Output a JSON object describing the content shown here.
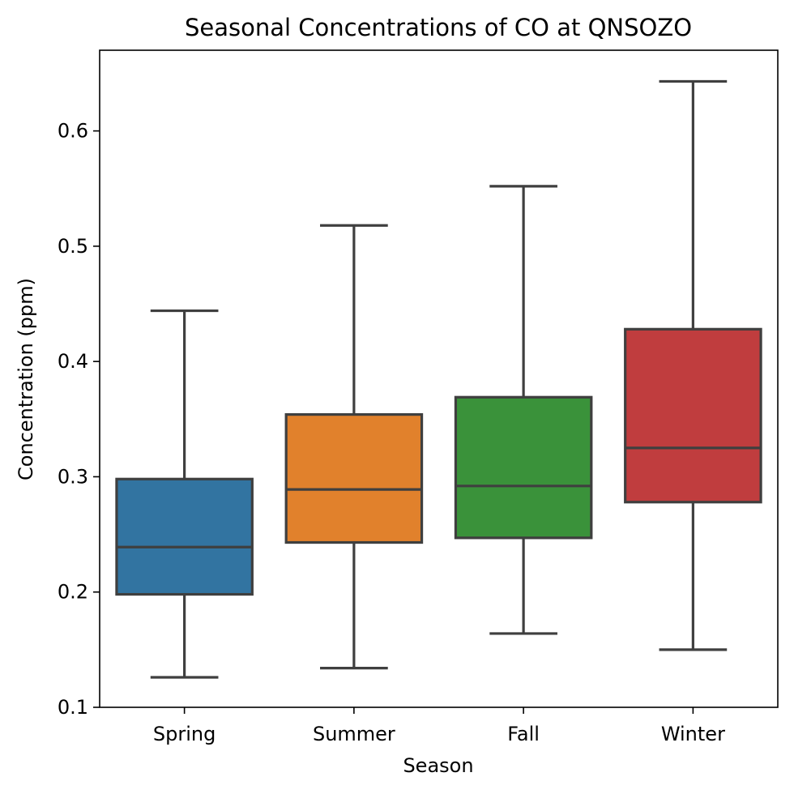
{
  "chart_data": {
    "type": "box",
    "title": "Seasonal Concentrations of CO at QNSOZO",
    "xlabel": "Season",
    "ylabel": "Concentration (ppm)",
    "ylim": [
      0.1,
      0.67
    ],
    "yticks": [
      0.1,
      0.2,
      0.3,
      0.4,
      0.5,
      0.6
    ],
    "ytick_labels": [
      "0.1",
      "0.2",
      "0.3",
      "0.4",
      "0.5",
      "0.6"
    ],
    "grid": false,
    "categories": [
      "Spring",
      "Summer",
      "Fall",
      "Winter"
    ],
    "boxes": [
      {
        "category": "Spring",
        "whisker_low": 0.126,
        "q1": 0.198,
        "median": 0.239,
        "q3": 0.298,
        "whisker_high": 0.444,
        "color": "#3274a1"
      },
      {
        "category": "Summer",
        "whisker_low": 0.134,
        "q1": 0.243,
        "median": 0.289,
        "q3": 0.354,
        "whisker_high": 0.518,
        "color": "#e1812c"
      },
      {
        "category": "Fall",
        "whisker_low": 0.164,
        "q1": 0.247,
        "median": 0.292,
        "q3": 0.369,
        "whisker_high": 0.552,
        "color": "#3a923a"
      },
      {
        "category": "Winter",
        "whisker_low": 0.15,
        "q1": 0.278,
        "median": 0.325,
        "q3": 0.428,
        "whisker_high": 0.643,
        "color": "#c03d3e"
      }
    ]
  }
}
